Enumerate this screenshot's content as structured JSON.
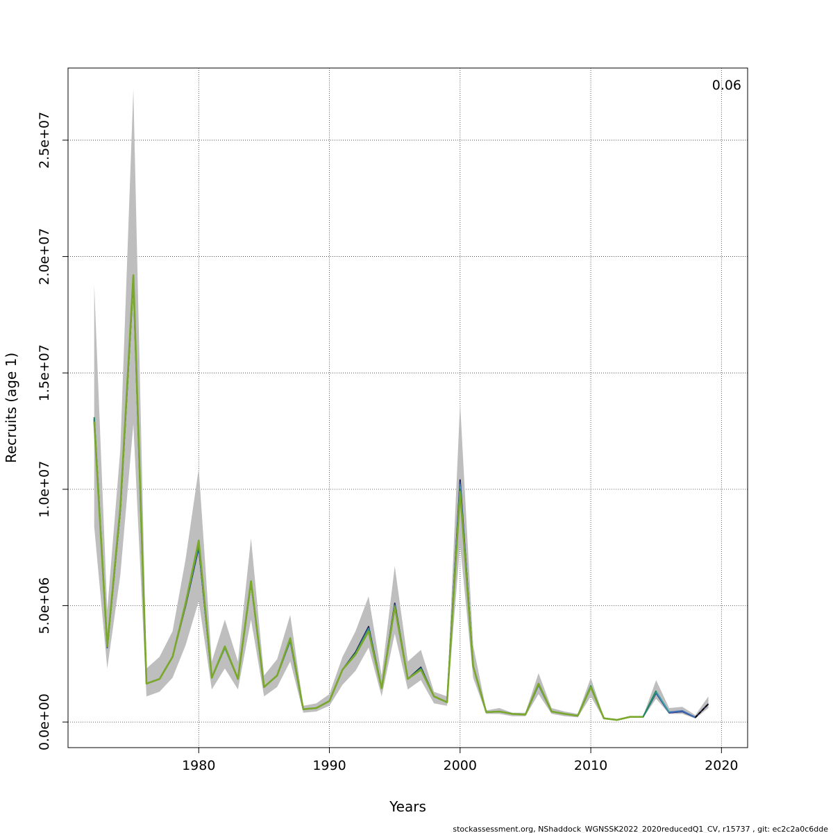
{
  "chart_data": {
    "type": "line",
    "xlabel": "Years",
    "ylabel": "Recruits (age 1)",
    "corner_label": "0.06",
    "footer": "stockassessment.org, NShaddock_WGNSSK2022_2020reducedQ1_CV, r15737 , git: ec2c2a0c6dde",
    "xlim": [
      1970,
      2022
    ],
    "ylim": [
      -1100000,
      28100000
    ],
    "xticks": [
      1980,
      1990,
      2000,
      2010,
      2020
    ],
    "xtick_labels": [
      "1980",
      "1990",
      "2000",
      "2010",
      "2020"
    ],
    "yticks": [
      0,
      5000000,
      10000000,
      15000000,
      20000000,
      25000000
    ],
    "ytick_labels": [
      "0.0e+00",
      "5.0e+06",
      "1.0e+07",
      "1.5e+07",
      "2.0e+07",
      "2.5e+07"
    ],
    "grid": true,
    "band_color": "#bebebe",
    "x": [
      1972,
      1973,
      1974,
      1975,
      1976,
      1977,
      1978,
      1979,
      1980,
      1981,
      1982,
      1983,
      1984,
      1985,
      1986,
      1987,
      1988,
      1989,
      1990,
      1991,
      1992,
      1993,
      1994,
      1995,
      1996,
      1997,
      1998,
      1999,
      2000,
      2001,
      2002,
      2003,
      2004,
      2005,
      2006,
      2007,
      2008,
      2009,
      2010,
      2011,
      2012,
      2013,
      2014,
      2015,
      2016,
      2017,
      2018,
      2019
    ],
    "band_upper": [
      18800000,
      4800000,
      11700000,
      27200000,
      2300000,
      2800000,
      3900000,
      7000000,
      10900000,
      2600000,
      4400000,
      2600000,
      7900000,
      2000000,
      2700000,
      4600000,
      700000,
      800000,
      1200000,
      2800000,
      3900000,
      5400000,
      2000000,
      6700000,
      2600000,
      3100000,
      1300000,
      1100000,
      13700000,
      3300000,
      500000,
      600000,
      400000,
      400000,
      2100000,
      600000,
      450000,
      350000,
      1900000,
      200000,
      100000,
      250000,
      250000,
      1800000,
      600000,
      650000,
      300000,
      1100000
    ],
    "band_lower": [
      8400000,
      2300000,
      6300000,
      12800000,
      1100000,
      1300000,
      1900000,
      3300000,
      5200000,
      1400000,
      2300000,
      1400000,
      4400000,
      1100000,
      1500000,
      2600000,
      400000,
      450000,
      700000,
      1600000,
      2200000,
      3200000,
      1100000,
      3800000,
      1400000,
      1800000,
      800000,
      700000,
      7600000,
      1900000,
      350000,
      350000,
      250000,
      250000,
      1200000,
      350000,
      250000,
      200000,
      1100000,
      120000,
      70000,
      180000,
      180000,
      1000000,
      350000,
      350000,
      150000,
      600000
    ],
    "series": [
      {
        "color": "#1b1a4a",
        "values": [
          13000000,
          3200000,
          9100000,
          19000000,
          1650000,
          1850000,
          2800000,
          5000000,
          7500000,
          1900000,
          3200000,
          1850000,
          6000000,
          1500000,
          2000000,
          3500000,
          550000,
          600000,
          900000,
          2250000,
          3000000,
          4100000,
          1450000,
          5100000,
          1850000,
          2350000,
          1100000,
          850000,
          10400000,
          2400000,
          420000,
          450000,
          350000,
          320000,
          1600000,
          450000,
          350000,
          270000,
          1500000,
          160000,
          90000,
          220000,
          220000,
          1250000,
          400000,
          450000,
          200000,
          780000
        ]
      },
      {
        "color": "#2f3c8c",
        "values": [
          13000000,
          3200000,
          9100000,
          19100000,
          1650000,
          1850000,
          2800000,
          5050000,
          7550000,
          1900000,
          3200000,
          1850000,
          6000000,
          1500000,
          2000000,
          3500000,
          550000,
          600000,
          900000,
          2250000,
          2950000,
          4050000,
          1450000,
          5050000,
          1850000,
          2300000,
          1100000,
          850000,
          10300000,
          2400000,
          420000,
          450000,
          350000,
          320000,
          1600000,
          450000,
          350000,
          270000,
          1500000,
          160000,
          90000,
          220000,
          220000,
          1250000,
          400000,
          450000,
          200000,
          null
        ]
      },
      {
        "color": "#3f6fb8",
        "values": [
          13000000,
          3250000,
          9150000,
          19100000,
          1650000,
          1850000,
          2800000,
          5050000,
          7600000,
          1900000,
          3200000,
          1850000,
          6000000,
          1500000,
          2000000,
          3500000,
          550000,
          600000,
          900000,
          2250000,
          2950000,
          4000000,
          1450000,
          5000000,
          1850000,
          2300000,
          1100000,
          850000,
          10200000,
          2400000,
          420000,
          450000,
          350000,
          320000,
          1600000,
          450000,
          350000,
          270000,
          1500000,
          160000,
          90000,
          220000,
          220000,
          1300000,
          420000,
          480000,
          200000,
          null
        ]
      },
      {
        "color": "#3aa0a8",
        "values": [
          13050000,
          3250000,
          9150000,
          19150000,
          1650000,
          1850000,
          2800000,
          5050000,
          7650000,
          1900000,
          3200000,
          1850000,
          6050000,
          1500000,
          2000000,
          3550000,
          550000,
          600000,
          900000,
          2250000,
          2950000,
          4000000,
          1450000,
          5000000,
          1850000,
          2300000,
          1100000,
          850000,
          10100000,
          2400000,
          420000,
          450000,
          350000,
          320000,
          1650000,
          450000,
          350000,
          270000,
          1550000,
          160000,
          90000,
          220000,
          220000,
          1300000,
          420000,
          null,
          null,
          null
        ]
      },
      {
        "color": "#1f8a5a",
        "values": [
          13100000,
          3250000,
          9200000,
          19150000,
          1650000,
          1850000,
          2800000,
          5100000,
          7700000,
          1900000,
          3250000,
          1850000,
          6050000,
          1500000,
          2000000,
          3550000,
          550000,
          600000,
          900000,
          2250000,
          2950000,
          3950000,
          1450000,
          4950000,
          1850000,
          2300000,
          1100000,
          850000,
          10000000,
          2400000,
          420000,
          450000,
          350000,
          320000,
          1650000,
          450000,
          350000,
          270000,
          1550000,
          160000,
          90000,
          220000,
          220000,
          1350000,
          null,
          null,
          null,
          null
        ]
      },
      {
        "color": "#7aa82a",
        "values": [
          12900000,
          3250000,
          9200000,
          19200000,
          1650000,
          1850000,
          2800000,
          5100000,
          7800000,
          1900000,
          3250000,
          1850000,
          6050000,
          1500000,
          2000000,
          3600000,
          550000,
          600000,
          900000,
          2250000,
          2900000,
          3900000,
          1450000,
          4950000,
          1850000,
          2250000,
          1100000,
          850000,
          9900000,
          2400000,
          420000,
          450000,
          350000,
          320000,
          1650000,
          450000,
          350000,
          270000,
          1500000,
          160000,
          90000,
          220000,
          220000,
          null,
          null,
          null,
          null,
          null
        ]
      }
    ]
  }
}
